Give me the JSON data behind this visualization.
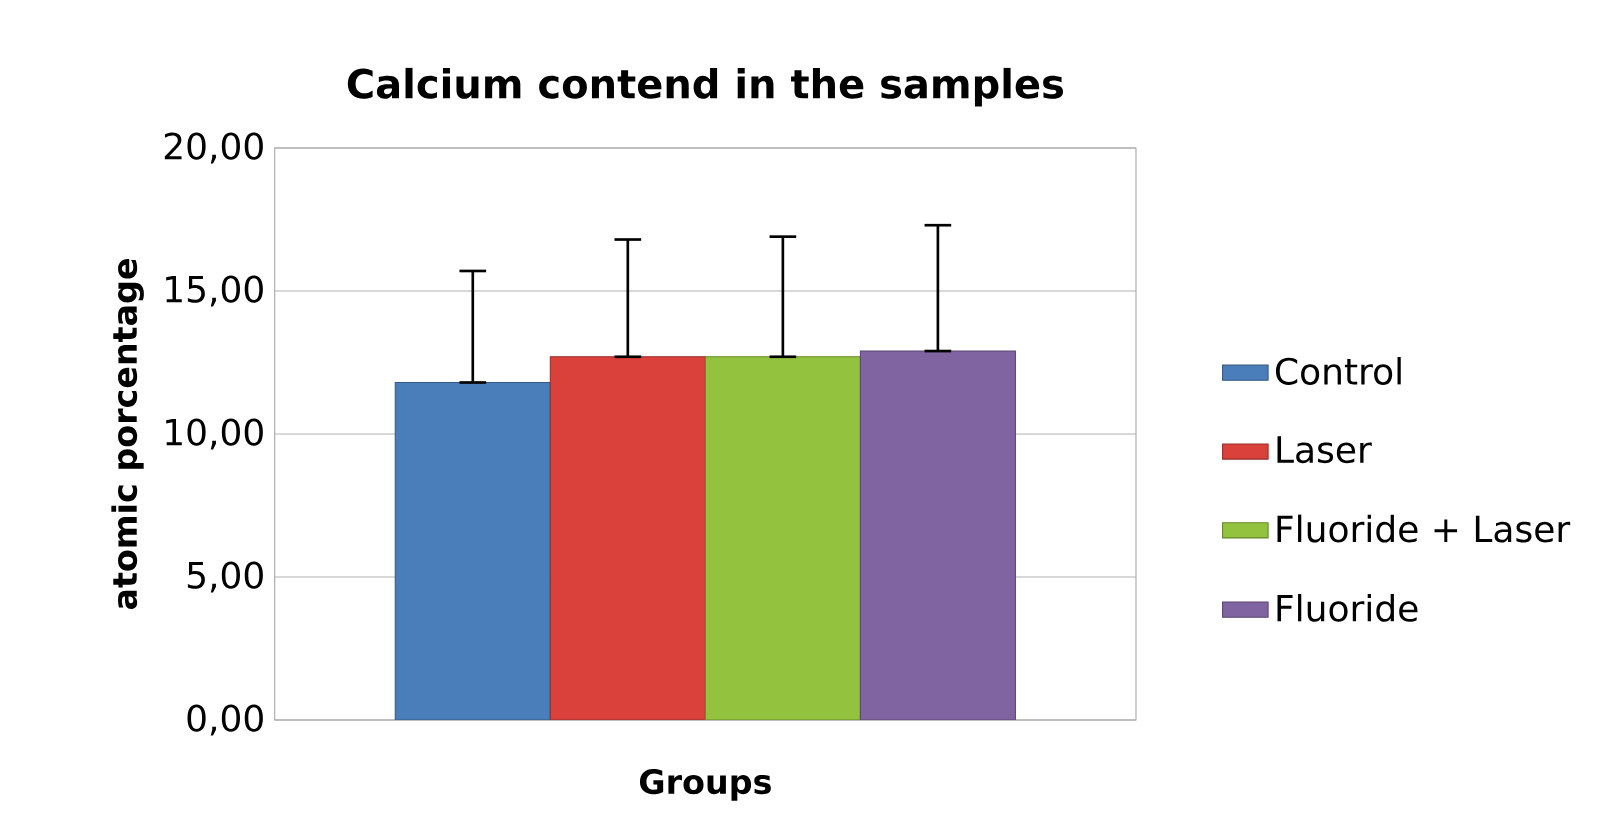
{
  "chart_data": {
    "type": "bar",
    "title": "Calcium contend in the samples",
    "xlabel": "Groups",
    "ylabel": "atomic porcentage",
    "categories": [
      null
    ],
    "series": [
      {
        "name": "Control",
        "color": "#4a7ebb",
        "values": [
          11.8
        ],
        "errors": [
          [
            11.8,
            15.7
          ]
        ]
      },
      {
        "name": "Laser",
        "color": "#d9413a",
        "values": [
          12.7
        ],
        "errors": [
          [
            12.7,
            16.8
          ]
        ]
      },
      {
        "name": "Fluoride + Laser",
        "color": "#92c23e",
        "values": [
          12.7
        ],
        "errors": [
          [
            12.7,
            16.9
          ]
        ]
      },
      {
        "name": "Fluoride",
        "color": "#8064a2",
        "values": [
          12.9
        ],
        "errors": [
          [
            12.9,
            17.3
          ]
        ]
      }
    ],
    "ylim": [
      0,
      20
    ],
    "yticks": [
      {
        "value": 0,
        "label": "0,00"
      },
      {
        "value": 5,
        "label": "5,00"
      },
      {
        "value": 10,
        "label": "10,00"
      },
      {
        "value": 15,
        "label": "15,00"
      },
      {
        "value": 20,
        "label": "20,00"
      }
    ],
    "grid": "y",
    "legend": "right"
  }
}
